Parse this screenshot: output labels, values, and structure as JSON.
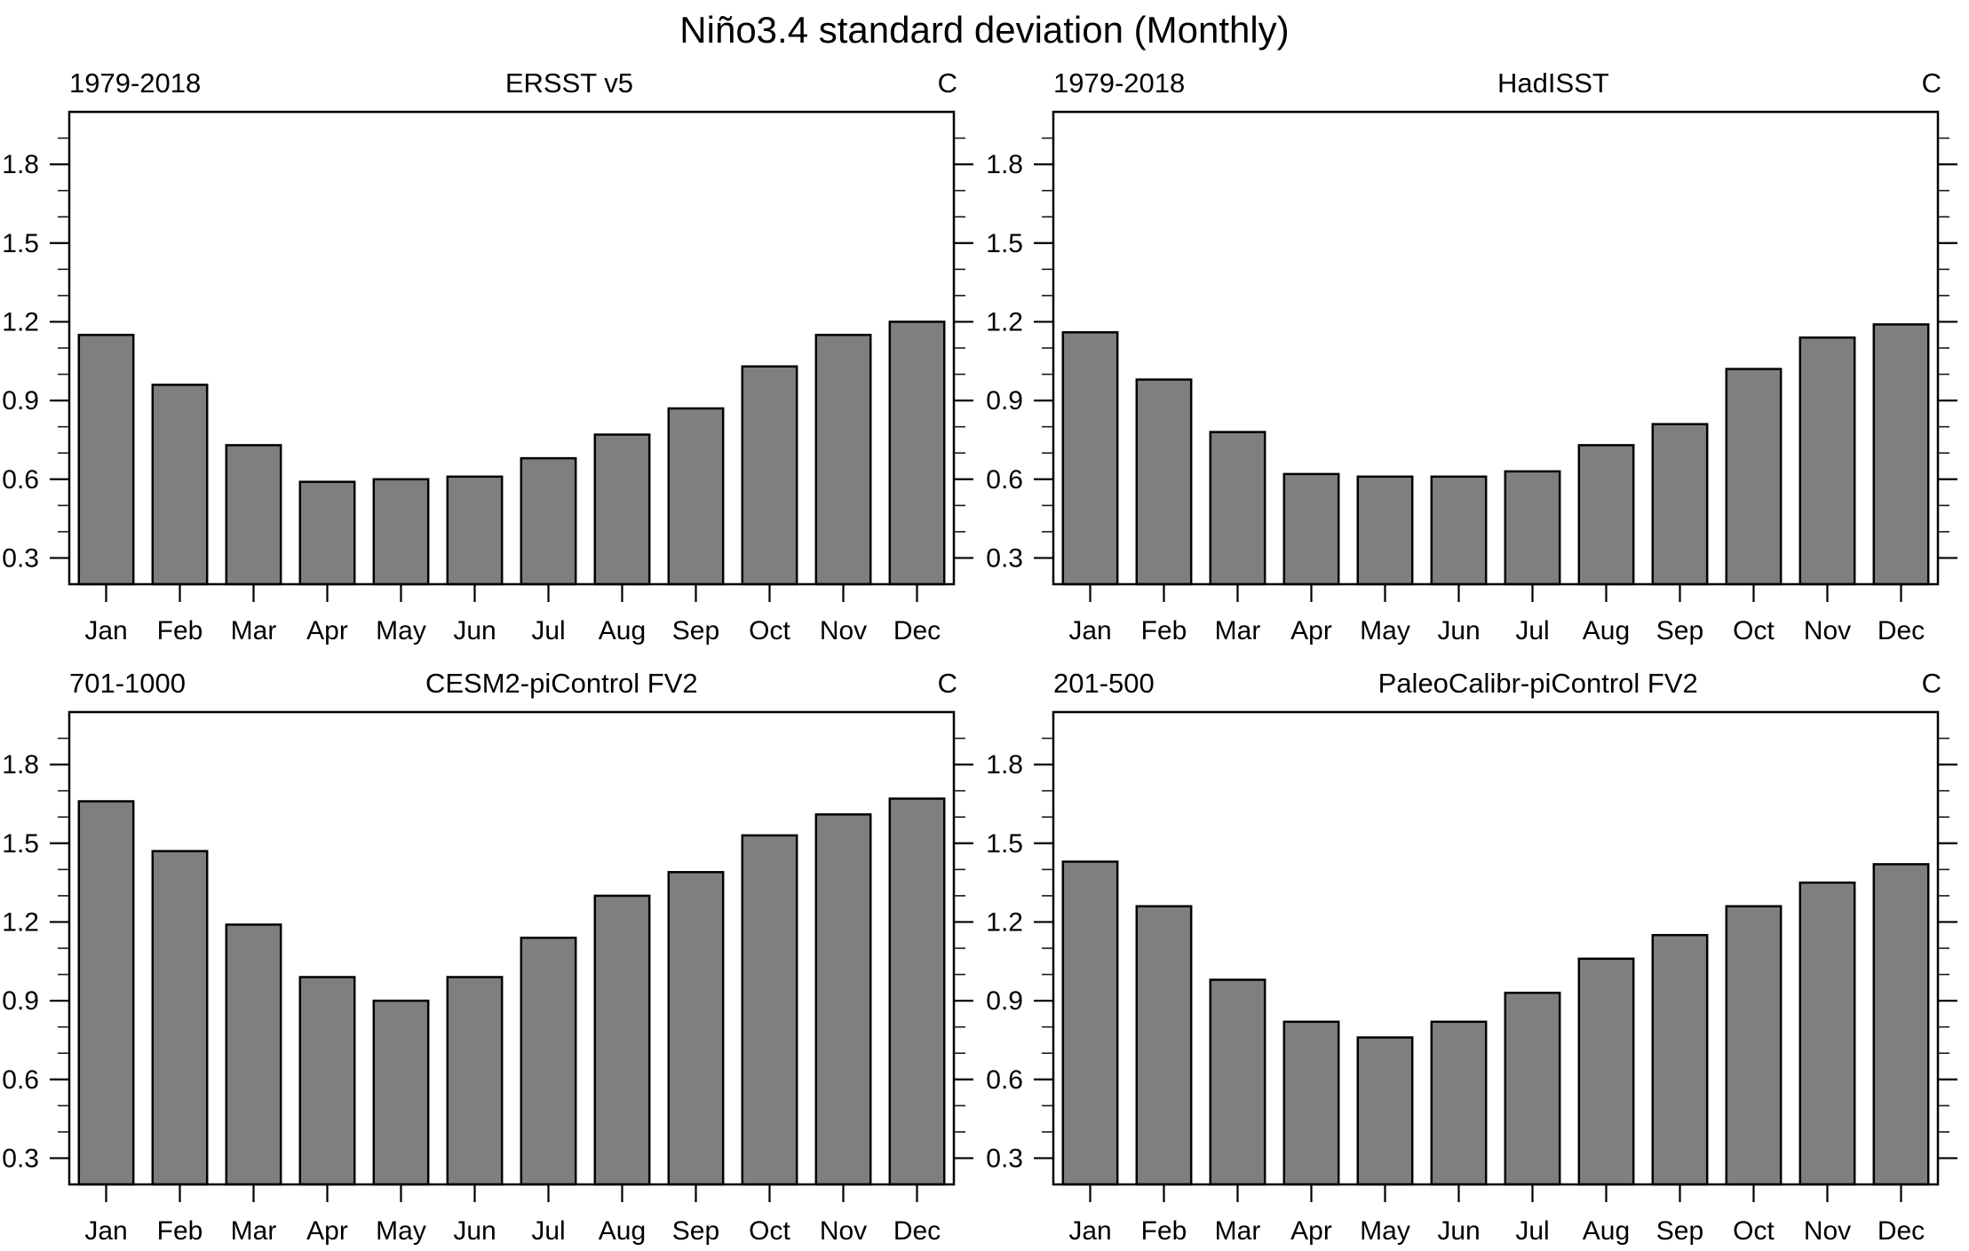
{
  "page_title": "Niño3.4 standard deviation (Monthly)",
  "months": [
    "Jan",
    "Feb",
    "Mar",
    "Apr",
    "May",
    "Jun",
    "Jul",
    "Aug",
    "Sep",
    "Oct",
    "Nov",
    "Dec"
  ],
  "colors": {
    "bar_fill": "#7f7f7f",
    "bar_outline": "#000000",
    "background": "#ffffff"
  },
  "axis": {
    "ylim": [
      0.2,
      2.0
    ],
    "major_ticks": [
      0.3,
      0.6,
      0.9,
      1.2,
      1.5,
      1.8
    ],
    "major_tick_labels": [
      "0.3",
      "0.6",
      "0.9",
      "1.2",
      "1.5",
      "1.8"
    ],
    "minor_step": 0.1,
    "grid": false
  },
  "chart_data": [
    {
      "type": "bar",
      "period": "1979-2018",
      "title": "ERSST v5",
      "unit": "C",
      "categories": [
        "Jan",
        "Feb",
        "Mar",
        "Apr",
        "May",
        "Jun",
        "Jul",
        "Aug",
        "Sep",
        "Oct",
        "Nov",
        "Dec"
      ],
      "values": [
        1.15,
        0.96,
        0.73,
        0.59,
        0.6,
        0.61,
        0.68,
        0.77,
        0.87,
        1.03,
        1.15,
        1.2
      ],
      "xlabel": "",
      "ylabel": "",
      "ylim": [
        0.2,
        2.0
      ],
      "legend": "none"
    },
    {
      "type": "bar",
      "period": "1979-2018",
      "title": "HadISST",
      "unit": "C",
      "categories": [
        "Jan",
        "Feb",
        "Mar",
        "Apr",
        "May",
        "Jun",
        "Jul",
        "Aug",
        "Sep",
        "Oct",
        "Nov",
        "Dec"
      ],
      "values": [
        1.16,
        0.98,
        0.78,
        0.62,
        0.61,
        0.61,
        0.63,
        0.73,
        0.81,
        1.02,
        1.14,
        1.19
      ],
      "xlabel": "",
      "ylabel": "",
      "ylim": [
        0.2,
        2.0
      ],
      "legend": "none"
    },
    {
      "type": "bar",
      "period": "701-1000",
      "title": "CESM2-piControl FV2",
      "unit": "C",
      "categories": [
        "Jan",
        "Feb",
        "Mar",
        "Apr",
        "May",
        "Jun",
        "Jul",
        "Aug",
        "Sep",
        "Oct",
        "Nov",
        "Dec"
      ],
      "values": [
        1.66,
        1.47,
        1.19,
        0.99,
        0.9,
        0.99,
        1.14,
        1.3,
        1.39,
        1.53,
        1.61,
        1.67
      ],
      "xlabel": "",
      "ylabel": "",
      "ylim": [
        0.2,
        2.0
      ],
      "legend": "none"
    },
    {
      "type": "bar",
      "period": "201-500",
      "title": "PaleoCalibr-piControl FV2",
      "unit": "C",
      "categories": [
        "Jan",
        "Feb",
        "Mar",
        "Apr",
        "May",
        "Jun",
        "Jul",
        "Aug",
        "Sep",
        "Oct",
        "Nov",
        "Dec"
      ],
      "values": [
        1.43,
        1.26,
        0.98,
        0.82,
        0.76,
        0.82,
        0.93,
        1.06,
        1.15,
        1.26,
        1.35,
        1.42
      ],
      "xlabel": "",
      "ylabel": "",
      "ylim": [
        0.2,
        2.0
      ],
      "legend": "none"
    }
  ]
}
